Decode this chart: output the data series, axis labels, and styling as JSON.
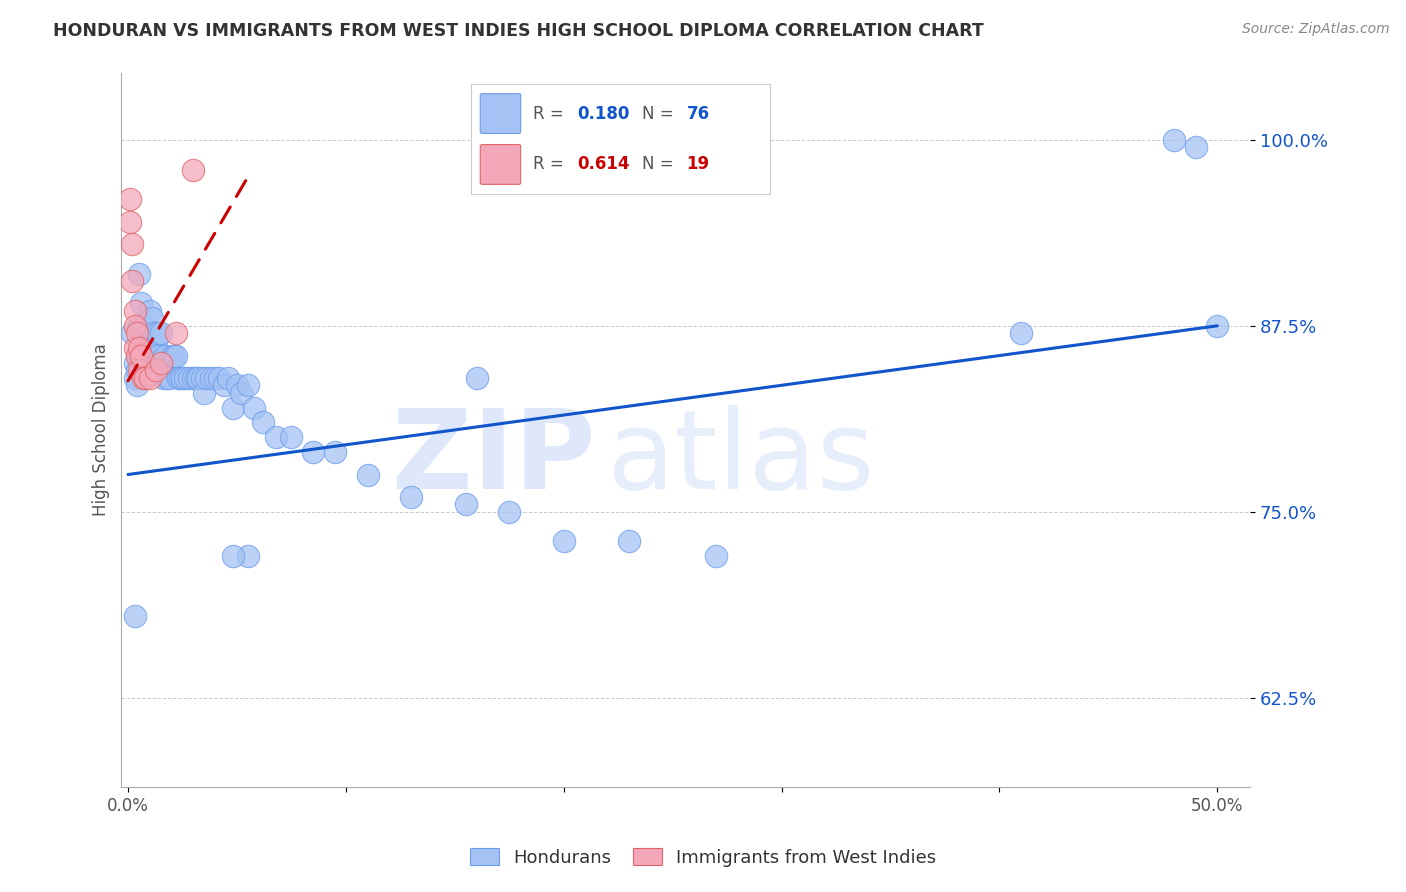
{
  "title": "HONDURAN VS IMMIGRANTS FROM WEST INDIES HIGH SCHOOL DIPLOMA CORRELATION CHART",
  "source": "Source: ZipAtlas.com",
  "ylabel": "High School Diploma",
  "xlim": [
    -0.003,
    0.515
  ],
  "ylim": [
    0.565,
    1.045
  ],
  "yticks": [
    0.625,
    0.75,
    0.875,
    1.0
  ],
  "ytick_labels": [
    "62.5%",
    "75.0%",
    "87.5%",
    "100.0%"
  ],
  "xticks": [
    0.0,
    0.1,
    0.2,
    0.3,
    0.4,
    0.5
  ],
  "xtick_labels": [
    "0.0%",
    "",
    "",
    "",
    "",
    "50.0%"
  ],
  "blue_R": 0.18,
  "blue_N": 76,
  "pink_R": 0.614,
  "pink_N": 19,
  "blue_color": "#a4c2f4",
  "pink_color": "#f4a7b9",
  "blue_edge_color": "#6d9eeb",
  "pink_edge_color": "#e06666",
  "blue_line_color": "#1155cc",
  "pink_line_color": "#cc0000",
  "blue_label": "Hondurans",
  "pink_label": "Immigrants from West Indies",
  "watermark_zip": "ZIP",
  "watermark_atlas": "atlas",
  "background_color": "#ffffff",
  "blue_trend_x": [
    0.0,
    0.5
  ],
  "blue_trend_y": [
    0.775,
    0.875
  ],
  "pink_trend_x": [
    0.0,
    0.055
  ],
  "pink_trend_y": [
    0.838,
    0.975
  ],
  "blue_x": [
    0.002,
    0.003,
    0.003,
    0.004,
    0.004,
    0.005,
    0.005,
    0.005,
    0.006,
    0.006,
    0.006,
    0.007,
    0.007,
    0.007,
    0.008,
    0.008,
    0.009,
    0.009,
    0.01,
    0.01,
    0.011,
    0.011,
    0.012,
    0.012,
    0.013,
    0.014,
    0.014,
    0.015,
    0.016,
    0.017,
    0.018,
    0.019,
    0.02,
    0.021,
    0.022,
    0.023,
    0.024,
    0.025,
    0.026,
    0.028,
    0.03,
    0.031,
    0.032,
    0.034,
    0.035,
    0.036,
    0.038,
    0.04,
    0.042,
    0.044,
    0.046,
    0.048,
    0.05,
    0.052,
    0.055,
    0.058,
    0.062,
    0.068,
    0.075,
    0.085,
    0.095,
    0.11,
    0.13,
    0.155,
    0.175,
    0.2,
    0.23,
    0.27,
    0.41,
    0.48,
    0.49,
    0.5,
    0.16,
    0.055,
    0.048,
    0.003
  ],
  "blue_y": [
    0.87,
    0.85,
    0.84,
    0.845,
    0.835,
    0.91,
    0.875,
    0.855,
    0.89,
    0.87,
    0.86,
    0.875,
    0.865,
    0.855,
    0.875,
    0.855,
    0.87,
    0.855,
    0.885,
    0.87,
    0.88,
    0.865,
    0.87,
    0.855,
    0.865,
    0.87,
    0.855,
    0.87,
    0.84,
    0.855,
    0.84,
    0.84,
    0.855,
    0.855,
    0.855,
    0.84,
    0.84,
    0.84,
    0.84,
    0.84,
    0.84,
    0.84,
    0.84,
    0.84,
    0.83,
    0.84,
    0.84,
    0.84,
    0.84,
    0.835,
    0.84,
    0.82,
    0.835,
    0.83,
    0.835,
    0.82,
    0.81,
    0.8,
    0.8,
    0.79,
    0.79,
    0.775,
    0.76,
    0.755,
    0.75,
    0.73,
    0.73,
    0.72,
    0.87,
    1.0,
    0.995,
    0.875,
    0.84,
    0.72,
    0.72,
    0.68
  ],
  "pink_x": [
    0.001,
    0.001,
    0.002,
    0.002,
    0.003,
    0.003,
    0.003,
    0.004,
    0.004,
    0.005,
    0.005,
    0.006,
    0.007,
    0.008,
    0.01,
    0.013,
    0.015,
    0.022,
    0.03
  ],
  "pink_y": [
    0.96,
    0.945,
    0.93,
    0.905,
    0.885,
    0.875,
    0.86,
    0.87,
    0.855,
    0.86,
    0.845,
    0.855,
    0.84,
    0.84,
    0.84,
    0.845,
    0.85,
    0.87,
    0.98
  ]
}
